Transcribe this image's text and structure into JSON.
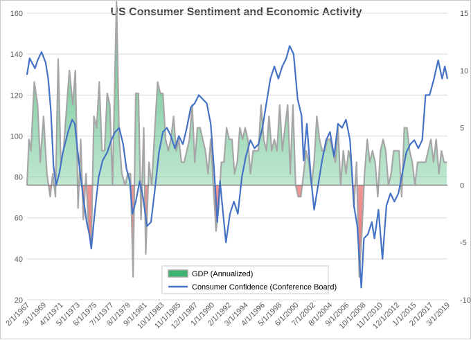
{
  "chart_data": {
    "type": "line",
    "title": "US Consumer Sentiment and Economic Activity",
    "xlabel": "",
    "ylabel": "",
    "y_left_lim": [
      20,
      160
    ],
    "y_left_ticks": [
      "20",
      "40",
      "60",
      "80",
      "100",
      "120",
      "140",
      "160"
    ],
    "y_right_lim": [
      -10,
      15
    ],
    "y_right_ticks": [
      "-10",
      "-5",
      "0",
      "5",
      "10",
      "15"
    ],
    "x_range": [
      "1967-02-01",
      "2019-12-01"
    ],
    "x_tick_labels": [
      "2/1/1967",
      "3/1/1969",
      "4/1/1971",
      "5/1/1973",
      "6/1/1975",
      "7/1/1977",
      "8/1/1979",
      "9/1/1981",
      "10/1/1983",
      "11/1/1985",
      "12/1/1987",
      "1/1/1990",
      "2/1/1992",
      "3/1/1994",
      "4/1/1996",
      "5/1/1998",
      "6/1/2000",
      "7/1/2002",
      "8/1/2004",
      "9/1/2006",
      "10/1/2008",
      "11/1/2010",
      "12/1/2012",
      "1/1/2015",
      "2/1/2017",
      "3/1/2019"
    ],
    "grid": "horizontal",
    "legend_position": "bottom-center",
    "legend": [
      {
        "label": "GDP (Annualized)",
        "color": "#3cb371"
      },
      {
        "label": "Consumer Confidence (Conference Board)",
        "color": "#4472c4"
      }
    ],
    "series": [
      {
        "name": "Consumer Confidence (Conference Board)",
        "axis": "left",
        "color": "#4472c4",
        "points": [
          [
            "1967-02-01",
            130
          ],
          [
            "1967-06-01",
            138
          ],
          [
            "1968-02-01",
            133
          ],
          [
            "1968-06-01",
            137
          ],
          [
            "1968-12-01",
            141
          ],
          [
            "1969-06-01",
            136
          ],
          [
            "1969-10-01",
            128
          ],
          [
            "1970-02-01",
            112
          ],
          [
            "1970-06-01",
            85
          ],
          [
            "1970-10-01",
            76
          ],
          [
            "1971-03-01",
            82
          ],
          [
            "1971-08-01",
            92
          ],
          [
            "1972-04-01",
            102
          ],
          [
            "1972-10-01",
            108
          ],
          [
            "1973-02-01",
            106
          ],
          [
            "1973-08-01",
            88
          ],
          [
            "1974-02-01",
            72
          ],
          [
            "1974-08-01",
            58
          ],
          [
            "1974-12-01",
            52
          ],
          [
            "1975-03-01",
            45
          ],
          [
            "1975-08-01",
            62
          ],
          [
            "1976-02-01",
            80
          ],
          [
            "1976-08-01",
            88
          ],
          [
            "1977-03-01",
            92
          ],
          [
            "1977-09-01",
            98
          ],
          [
            "1978-03-01",
            102
          ],
          [
            "1978-09-01",
            104
          ],
          [
            "1979-03-01",
            96
          ],
          [
            "1979-08-01",
            84
          ],
          [
            "1980-01-01",
            78
          ],
          [
            "1980-05-01",
            62
          ],
          [
            "1980-10-01",
            68
          ],
          [
            "1981-04-01",
            78
          ],
          [
            "1981-09-01",
            70
          ],
          [
            "1982-03-01",
            56
          ],
          [
            "1982-09-01",
            58
          ],
          [
            "1983-03-01",
            74
          ],
          [
            "1983-09-01",
            92
          ],
          [
            "1984-03-01",
            102
          ],
          [
            "1984-09-01",
            104
          ],
          [
            "1985-03-01",
            100
          ],
          [
            "1985-09-01",
            94
          ],
          [
            "1986-03-01",
            100
          ],
          [
            "1986-09-01",
            96
          ],
          [
            "1987-03-01",
            104
          ],
          [
            "1987-09-01",
            114
          ],
          [
            "1988-03-01",
            116
          ],
          [
            "1988-09-01",
            120
          ],
          [
            "1989-03-01",
            118
          ],
          [
            "1989-09-01",
            116
          ],
          [
            "1990-03-01",
            106
          ],
          [
            "1990-08-01",
            84
          ],
          [
            "1991-01-01",
            58
          ],
          [
            "1991-05-01",
            78
          ],
          [
            "1991-11-01",
            58
          ],
          [
            "1992-02-01",
            48
          ],
          [
            "1992-08-01",
            62
          ],
          [
            "1993-02-01",
            68
          ],
          [
            "1993-08-01",
            62
          ],
          [
            "1994-02-01",
            80
          ],
          [
            "1994-08-01",
            90
          ],
          [
            "1995-03-01",
            98
          ],
          [
            "1995-09-01",
            94
          ],
          [
            "1996-03-01",
            96
          ],
          [
            "1996-09-01",
            104
          ],
          [
            "1997-03-01",
            116
          ],
          [
            "1997-09-01",
            128
          ],
          [
            "1998-03-01",
            134
          ],
          [
            "1998-09-01",
            128
          ],
          [
            "1999-03-01",
            134
          ],
          [
            "1999-09-01",
            138
          ],
          [
            "2000-02-01",
            144
          ],
          [
            "2000-08-01",
            140
          ],
          [
            "2001-02-01",
            118
          ],
          [
            "2001-08-01",
            110
          ],
          [
            "2001-11-01",
            88
          ],
          [
            "2002-04-01",
            106
          ],
          [
            "2002-10-01",
            80
          ],
          [
            "2003-03-01",
            64
          ],
          [
            "2003-09-01",
            76
          ],
          [
            "2004-03-01",
            88
          ],
          [
            "2004-09-01",
            98
          ],
          [
            "2005-03-01",
            102
          ],
          [
            "2005-09-01",
            90
          ],
          [
            "2006-03-01",
            106
          ],
          [
            "2006-09-01",
            104
          ],
          [
            "2007-03-01",
            108
          ],
          [
            "2007-09-01",
            98
          ],
          [
            "2008-03-01",
            66
          ],
          [
            "2008-08-01",
            56
          ],
          [
            "2009-02-01",
            26
          ],
          [
            "2009-06-01",
            50
          ],
          [
            "2009-12-01",
            52
          ],
          [
            "2010-06-01",
            58
          ],
          [
            "2010-10-01",
            50
          ],
          [
            "2011-04-01",
            64
          ],
          [
            "2011-10-01",
            40
          ],
          [
            "2012-04-01",
            66
          ],
          [
            "2012-10-01",
            72
          ],
          [
            "2013-04-01",
            68
          ],
          [
            "2013-10-01",
            72
          ],
          [
            "2014-04-01",
            82
          ],
          [
            "2014-10-01",
            92
          ],
          [
            "2015-04-01",
            96
          ],
          [
            "2015-10-01",
            98
          ],
          [
            "2016-04-01",
            94
          ],
          [
            "2016-10-01",
            98
          ],
          [
            "2017-03-01",
            120
          ],
          [
            "2017-09-01",
            120
          ],
          [
            "2018-03-01",
            127
          ],
          [
            "2018-10-01",
            137
          ],
          [
            "2019-04-01",
            128
          ],
          [
            "2019-08-01",
            134
          ],
          [
            "2019-12-01",
            128
          ]
        ]
      },
      {
        "name": "GDP (Annualized)",
        "axis": "right",
        "color": "#a6a6a6",
        "fill_positive": "#3cb371",
        "fill_negative": "#e85a5a",
        "points": [
          [
            "1967-02-01",
            0
          ],
          [
            "1967-05-01",
            4
          ],
          [
            "1967-08-01",
            3
          ],
          [
            "1968-01-01",
            9
          ],
          [
            "1968-06-01",
            7
          ],
          [
            "1968-10-01",
            2
          ],
          [
            "1969-03-01",
            6
          ],
          [
            "1969-08-01",
            1
          ],
          [
            "1970-01-01",
            -1
          ],
          [
            "1970-05-01",
            1
          ],
          [
            "1970-09-01",
            -1
          ],
          [
            "1971-01-01",
            11
          ],
          [
            "1971-05-01",
            2
          ],
          [
            "1971-09-01",
            3
          ],
          [
            "1972-02-01",
            7
          ],
          [
            "1972-06-01",
            10
          ],
          [
            "1972-11-01",
            7
          ],
          [
            "1973-03-01",
            10
          ],
          [
            "1973-07-01",
            -2
          ],
          [
            "1973-11-01",
            4
          ],
          [
            "1974-03-01",
            -3
          ],
          [
            "1974-07-01",
            1
          ],
          [
            "1974-11-01",
            -4
          ],
          [
            "1975-03-01",
            -5
          ],
          [
            "1975-07-01",
            6
          ],
          [
            "1975-11-01",
            5
          ],
          [
            "1976-03-01",
            9
          ],
          [
            "1976-07-01",
            3
          ],
          [
            "1976-11-01",
            3
          ],
          [
            "1977-03-01",
            8
          ],
          [
            "1977-07-01",
            7
          ],
          [
            "1977-11-01",
            0
          ],
          [
            "1978-05-01",
            16
          ],
          [
            "1978-09-01",
            4
          ],
          [
            "1979-01-01",
            1
          ],
          [
            "1979-06-01",
            0
          ],
          [
            "1979-10-01",
            1
          ],
          [
            "1980-02-01",
            1
          ],
          [
            "1980-06-01",
            -8
          ],
          [
            "1980-10-01",
            8
          ],
          [
            "1981-02-01",
            8
          ],
          [
            "1981-06-01",
            -3
          ],
          [
            "1981-10-01",
            5
          ],
          [
            "1982-01-01",
            -6
          ],
          [
            "1982-06-01",
            2
          ],
          [
            "1982-10-01",
            0
          ],
          [
            "1983-03-01",
            5
          ],
          [
            "1983-07-01",
            9
          ],
          [
            "1983-11-01",
            8
          ],
          [
            "1984-03-01",
            8
          ],
          [
            "1984-07-01",
            4
          ],
          [
            "1984-11-01",
            3
          ],
          [
            "1985-03-01",
            4
          ],
          [
            "1985-07-01",
            6
          ],
          [
            "1985-11-01",
            3
          ],
          [
            "1986-03-01",
            4
          ],
          [
            "1986-07-01",
            2
          ],
          [
            "1986-11-01",
            2
          ],
          [
            "1987-03-01",
            3
          ],
          [
            "1987-07-01",
            4
          ],
          [
            "1987-11-01",
            7
          ],
          [
            "1988-03-01",
            2
          ],
          [
            "1988-07-01",
            5
          ],
          [
            "1988-11-01",
            5
          ],
          [
            "1989-03-01",
            4
          ],
          [
            "1989-07-01",
            3
          ],
          [
            "1989-11-01",
            1
          ],
          [
            "1990-03-01",
            4
          ],
          [
            "1990-07-01",
            0
          ],
          [
            "1990-11-01",
            -4
          ],
          [
            "1991-03-01",
            -2
          ],
          [
            "1991-07-01",
            2
          ],
          [
            "1991-11-01",
            2
          ],
          [
            "1992-03-01",
            5
          ],
          [
            "1992-07-01",
            4
          ],
          [
            "1992-11-01",
            4
          ],
          [
            "1993-03-01",
            1
          ],
          [
            "1993-07-01",
            2
          ],
          [
            "1993-11-01",
            5
          ],
          [
            "1994-03-01",
            4
          ],
          [
            "1994-07-01",
            5
          ],
          [
            "1994-11-01",
            4
          ],
          [
            "1995-03-01",
            1
          ],
          [
            "1995-07-01",
            3
          ],
          [
            "1995-11-01",
            3
          ],
          [
            "1996-03-01",
            3
          ],
          [
            "1996-07-01",
            7
          ],
          [
            "1996-11-01",
            4
          ],
          [
            "1997-03-01",
            3
          ],
          [
            "1997-07-01",
            6
          ],
          [
            "1997-11-01",
            3
          ],
          [
            "1998-03-01",
            4
          ],
          [
            "1998-07-01",
            3
          ],
          [
            "1998-11-01",
            7
          ],
          [
            "1999-03-01",
            3
          ],
          [
            "1999-07-01",
            5
          ],
          [
            "1999-11-01",
            7
          ],
          [
            "2000-03-01",
            1
          ],
          [
            "2000-07-01",
            7
          ],
          [
            "2000-11-01",
            0
          ],
          [
            "2001-03-01",
            -1
          ],
          [
            "2001-07-01",
            -1
          ],
          [
            "2001-11-01",
            1
          ],
          [
            "2002-03-01",
            3
          ],
          [
            "2002-07-01",
            2
          ],
          [
            "2002-11-01",
            0
          ],
          [
            "2003-03-01",
            2
          ],
          [
            "2003-07-01",
            6
          ],
          [
            "2003-11-01",
            4
          ],
          [
            "2004-03-01",
            3
          ],
          [
            "2004-07-01",
            3
          ],
          [
            "2004-11-01",
            4
          ],
          [
            "2005-03-01",
            4
          ],
          [
            "2005-07-01",
            3
          ],
          [
            "2005-11-01",
            2
          ],
          [
            "2006-03-01",
            5
          ],
          [
            "2006-07-01",
            0
          ],
          [
            "2006-11-01",
            3
          ],
          [
            "2007-03-01",
            1
          ],
          [
            "2007-07-01",
            3
          ],
          [
            "2007-11-01",
            2
          ],
          [
            "2008-03-01",
            -2
          ],
          [
            "2008-07-01",
            2
          ],
          [
            "2008-11-01",
            -8
          ],
          [
            "2009-03-01",
            -4
          ],
          [
            "2009-07-01",
            1
          ],
          [
            "2009-11-01",
            4
          ],
          [
            "2010-03-01",
            2
          ],
          [
            "2010-07-01",
            3
          ],
          [
            "2010-11-01",
            2
          ],
          [
            "2011-03-01",
            -1
          ],
          [
            "2011-07-01",
            3
          ],
          [
            "2011-11-01",
            4
          ],
          [
            "2012-03-01",
            3
          ],
          [
            "2012-07-01",
            0
          ],
          [
            "2012-11-01",
            1
          ],
          [
            "2013-03-01",
            3
          ],
          [
            "2013-07-01",
            3
          ],
          [
            "2013-11-01",
            3
          ],
          [
            "2014-03-01",
            -1
          ],
          [
            "2014-07-01",
            5
          ],
          [
            "2014-11-01",
            5
          ],
          [
            "2015-03-01",
            3
          ],
          [
            "2015-07-01",
            2
          ],
          [
            "2015-11-01",
            0
          ],
          [
            "2016-03-01",
            2
          ],
          [
            "2016-07-01",
            2
          ],
          [
            "2016-11-01",
            2
          ],
          [
            "2017-03-01",
            2
          ],
          [
            "2017-07-01",
            3
          ],
          [
            "2017-11-01",
            4
          ],
          [
            "2018-03-01",
            2
          ],
          [
            "2018-07-01",
            4
          ],
          [
            "2018-11-01",
            1
          ],
          [
            "2019-03-01",
            3
          ],
          [
            "2019-07-01",
            2
          ],
          [
            "2019-11-01",
            2
          ]
        ]
      }
    ]
  }
}
